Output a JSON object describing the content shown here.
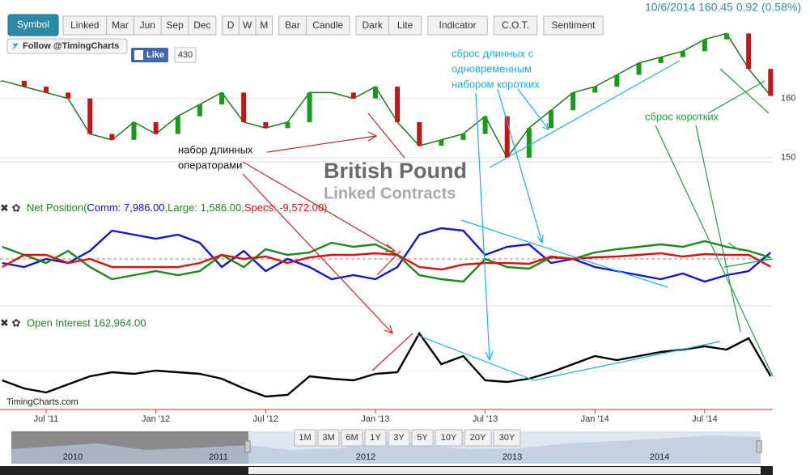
{
  "toolbar": {
    "symbol": "Symbol",
    "groups": [
      [
        "Linked",
        "Mar",
        "Jun",
        "Sep",
        "Dec"
      ],
      [
        "D",
        "W",
        "M"
      ],
      [
        "Bar",
        "Candle"
      ],
      [
        "Dark",
        "Lite"
      ],
      [
        "Indicator"
      ],
      [
        "C.O.T."
      ],
      [
        "Sentiment"
      ]
    ]
  },
  "quote": "10/6/2014 160.45 0.92 (0.58%)",
  "social": {
    "follow": "Follow @TimingCharts",
    "like": "Like",
    "like_count": 430
  },
  "watermark": {
    "title": "British Pound",
    "subtitle": "Linked Contracts",
    "site": "TimingCharts.com"
  },
  "x": [
    2011.3,
    2011.4,
    2011.5,
    2011.6,
    2011.7,
    2011.8,
    2011.9,
    2012.0,
    2012.1,
    2012.2,
    2012.3,
    2012.4,
    2012.5,
    2012.6,
    2012.7,
    2012.8,
    2012.9,
    2013.0,
    2013.1,
    2013.2,
    2013.3,
    2013.4,
    2013.5,
    2013.6,
    2013.7,
    2013.8,
    2013.9,
    2014.0,
    2014.1,
    2014.2,
    2014.3,
    2014.4,
    2014.5,
    2014.6,
    2014.7,
    2014.8
  ],
  "xlim": [
    2011.29,
    2014.81
  ],
  "xticks": [
    {
      "value": 2011.5,
      "label": "Jul '11"
    },
    {
      "value": 2012.0,
      "label": "Jan '12"
    },
    {
      "value": 2012.5,
      "label": "Jul '12"
    },
    {
      "value": 2013.0,
      "label": "Jan '13"
    },
    {
      "value": 2013.5,
      "label": "Jul '13"
    },
    {
      "value": 2014.0,
      "label": "Jan '14"
    },
    {
      "value": 2014.5,
      "label": "Jul '14"
    }
  ],
  "price_panel": {
    "ylim": [
      148.6,
      170.5
    ],
    "yticks": [
      160,
      150
    ],
    "color": "#1a7a1a",
    "values": [
      163,
      162,
      161,
      160,
      154,
      153,
      156,
      154,
      157,
      159,
      161,
      156,
      155,
      156,
      161,
      161,
      160,
      162,
      156,
      152,
      153,
      154,
      157,
      150,
      155,
      158,
      161,
      162,
      164,
      166,
      167,
      168,
      170,
      171,
      165,
      160.45
    ]
  },
  "net_position": {
    "ylim": [
      -50000,
      50000
    ],
    "label_parts": [
      {
        "text": "Net Position(",
        "color": "#1a8a1a"
      },
      {
        "text": "Comm: 7,986.00",
        "color": "#1010c0"
      },
      {
        "text": ",Large: 1,586.00",
        "color": "#1a8a1a"
      },
      {
        "text": ",Specs: -9,572.00)",
        "color": "#e01010"
      }
    ],
    "series": [
      {
        "name": "Comm",
        "color": "#1414d8",
        "values": [
          -5000,
          -10000,
          0,
          -5000,
          10000,
          35000,
          30000,
          25000,
          30000,
          20000,
          -10000,
          10000,
          -15000,
          0,
          -10000,
          -25000,
          -20000,
          -25000,
          -10000,
          30000,
          38000,
          35000,
          5000,
          15000,
          18000,
          -5000,
          0,
          -10000,
          -15000,
          -20000,
          -25000,
          -18000,
          -28000,
          -20000,
          -15000,
          7986
        ]
      },
      {
        "name": "Large",
        "color": "#1a8a1a",
        "values": [
          15000,
          5000,
          -5000,
          10000,
          -10000,
          -25000,
          -20000,
          -15000,
          -20000,
          -15000,
          5000,
          -10000,
          12000,
          5000,
          8000,
          20000,
          15000,
          18000,
          5000,
          -20000,
          -25000,
          -28000,
          0,
          -10000,
          -12000,
          2000,
          0,
          8000,
          12000,
          15000,
          18000,
          15000,
          22000,
          15000,
          10000,
          1586
        ]
      },
      {
        "name": "Specs",
        "color": "#e01010",
        "values": [
          -10000,
          5000,
          5000,
          -5000,
          0,
          -10000,
          -10000,
          -10000,
          -10000,
          -5000,
          5000,
          0,
          3000,
          -5000,
          2000,
          5000,
          5000,
          7000,
          5000,
          -10000,
          -13000,
          -7000,
          -5000,
          -5000,
          -6000,
          3000,
          0,
          2000,
          3000,
          5000,
          7000,
          3000,
          6000,
          5000,
          5000,
          -9572
        ]
      }
    ]
  },
  "open_interest": {
    "label": "Open Interest 162,964.00",
    "ylim": [
      120000,
      230000
    ],
    "color": "#000000",
    "values": [
      156700,
      144400,
      138300,
      150500,
      162800,
      168900,
      166400,
      171300,
      168900,
      166400,
      159100,
      144400,
      132200,
      134700,
      162800,
      159100,
      156700,
      166400,
      168900,
      227500,
      181100,
      193300,
      156700,
      154200,
      159100,
      168900,
      181100,
      193300,
      187200,
      193300,
      199400,
      203100,
      208000,
      203100,
      220200,
      162964
    ]
  },
  "annotations": {
    "longs": [
      "набор  длинных",
      "операторами"
    ],
    "reversal": [
      "сброс  длинных  с",
      "одновременным",
      "набором  коротких"
    ],
    "shorts": "сброс   коротких"
  },
  "navigator": {
    "years": [
      "2010",
      "2011",
      "2012",
      "2013",
      "2014"
    ],
    "ranges": [
      "1M",
      "3M",
      "6M",
      "1Y",
      "3Y",
      "5Y",
      "10Y",
      "20Y",
      "30Y"
    ]
  }
}
